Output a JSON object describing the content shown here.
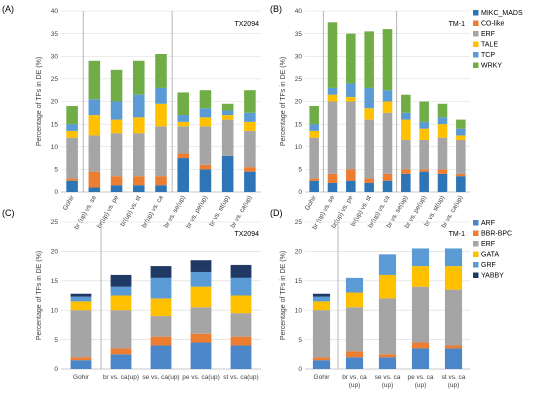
{
  "colors": {
    "MIKC_MADS": "#2e75b6",
    "CO-like": "#ed7d31",
    "ERF": "#a5a5a5",
    "TALE": "#ffc000",
    "TCP": "#5b9bd5",
    "WRKY": "#70ad47",
    "ARF": "#4a86c8",
    "BBR-BPC": "#ed7d31",
    "GATA": "#ffc000",
    "GRF": "#5b9bd5",
    "YABBY": "#203864",
    "grid": "#d9d9d9",
    "divider": "#a6a6a6"
  },
  "chart_data": [
    {
      "panel": "(A)",
      "type": "bar",
      "stacked": true,
      "title": "TX2094",
      "ylabel": "Percentage of TFs in DE (%)",
      "ylim": [
        0,
        40
      ],
      "yticks": [
        0,
        5,
        10,
        15,
        20,
        25,
        30,
        35,
        40
      ],
      "grid": true,
      "categories": [
        "Gohir",
        "br (up) vs. se",
        "br(up) vs. pe",
        "br(up) vs. st",
        "br(up) vs. ca",
        "br vs. se(up)",
        "br vs. pe(up)",
        "br vs. st(up)",
        "br vs. ca(up)"
      ],
      "series": [
        {
          "name": "MIKC_MADS",
          "values": [
            2.5,
            1.0,
            1.5,
            1.5,
            1.5,
            7.5,
            5.0,
            8.0,
            4.5
          ]
        },
        {
          "name": "CO-like",
          "values": [
            0.5,
            3.5,
            2.0,
            2.0,
            2.0,
            1.0,
            1.0,
            0,
            1.0
          ]
        },
        {
          "name": "ERF",
          "values": [
            9.0,
            8.0,
            9.5,
            9.5,
            11.0,
            6.0,
            8.5,
            8.0,
            8.0
          ]
        },
        {
          "name": "TALE",
          "values": [
            1.5,
            4.5,
            3.0,
            3.5,
            5.0,
            1.0,
            2.0,
            1.0,
            2.0
          ]
        },
        {
          "name": "TCP",
          "values": [
            1.5,
            3.5,
            4.0,
            5.0,
            3.5,
            1.5,
            2.0,
            1.0,
            2.0
          ]
        },
        {
          "name": "WRKY",
          "values": [
            4.0,
            8.5,
            7.0,
            7.5,
            7.5,
            5.0,
            4.0,
            1.5,
            5.0
          ]
        }
      ]
    },
    {
      "panel": "(B)",
      "type": "bar",
      "stacked": true,
      "title": "TM-1",
      "ylabel": "Percentage of TFs in DE (%)",
      "ylim": [
        0,
        40
      ],
      "yticks": [
        0,
        5,
        10,
        15,
        20,
        25,
        30,
        35,
        40
      ],
      "grid": true,
      "legend": [
        "MIKC_MADS",
        "CO-like",
        "ERF",
        "TALE",
        "TCP",
        "WRKY"
      ],
      "legend_position": "right",
      "categories": [
        "Gohir",
        "br (up) vs. se",
        "br(up) vs. pe",
        "br(up) vs. st",
        "br(up) vs. ca",
        "br vs. se(up)",
        "br vs. pe(up)",
        "br vs. st(up)",
        "br vs. ca(up)"
      ],
      "series": [
        {
          "name": "MIKC_MADS",
          "values": [
            2.5,
            2.0,
            2.5,
            2.0,
            2.5,
            4.0,
            4.5,
            4.0,
            3.5
          ]
        },
        {
          "name": "CO-like",
          "values": [
            0.5,
            2.0,
            2.5,
            1.0,
            1.5,
            1.0,
            0.5,
            1.0,
            0.5
          ]
        },
        {
          "name": "ERF",
          "values": [
            9.0,
            16.0,
            15.0,
            13.0,
            13.5,
            6.5,
            6.5,
            7.0,
            7.5
          ]
        },
        {
          "name": "TALE",
          "values": [
            1.5,
            1.5,
            1.0,
            2.5,
            2.5,
            4.5,
            2.5,
            3.0,
            1.0
          ]
        },
        {
          "name": "TCP",
          "values": [
            1.5,
            1.5,
            3.0,
            4.5,
            2.5,
            1.5,
            1.5,
            1.5,
            1.5
          ]
        },
        {
          "name": "WRKY",
          "values": [
            4.0,
            14.5,
            11.0,
            12.5,
            13.5,
            4.0,
            4.5,
            3.0,
            2.0
          ]
        }
      ]
    },
    {
      "panel": "(C)",
      "type": "bar",
      "stacked": true,
      "title": "TX2094",
      "ylabel": "Percentage of TFs in DE (%)",
      "ylim": [
        0,
        25
      ],
      "yticks": [
        0,
        5,
        10,
        15,
        20,
        25
      ],
      "grid": true,
      "categories": [
        "Gohir",
        "br vs. ca(up)",
        "se vs. ca(up)",
        "pe vs. ca(up)",
        "st vs. ca(up)"
      ],
      "series": [
        {
          "name": "ARF",
          "values": [
            1.5,
            2.5,
            4.0,
            4.5,
            4.0
          ]
        },
        {
          "name": "BBR-BPC",
          "values": [
            0.5,
            1.0,
            1.5,
            1.5,
            1.5
          ]
        },
        {
          "name": "ERF",
          "values": [
            8.0,
            6.5,
            3.5,
            4.5,
            4.0
          ]
        },
        {
          "name": "GATA",
          "values": [
            1.5,
            2.5,
            3.0,
            3.5,
            3.0
          ]
        },
        {
          "name": "GRF",
          "values": [
            0.8,
            1.5,
            3.5,
            2.5,
            3.0
          ]
        },
        {
          "name": "YABBY",
          "values": [
            0.5,
            2.0,
            2.0,
            2.0,
            2.2
          ]
        }
      ]
    },
    {
      "panel": "(D)",
      "type": "bar",
      "stacked": true,
      "title": "TM-1",
      "ylabel": "Percentage of TFs in DE (%)",
      "ylim": [
        0,
        25
      ],
      "yticks": [
        0,
        5,
        10,
        15,
        20,
        25
      ],
      "grid": true,
      "legend": [
        "ARF",
        "BBR-BPC",
        "ERF",
        "GATA",
        "GRF",
        "YABBY"
      ],
      "legend_position": "right",
      "categories": [
        "Gohir",
        "br vs. ca\n(up)",
        "se vs. ca\n(up)",
        "pe vs. ca\n(up)",
        "st vs. ca\n(up)"
      ],
      "series": [
        {
          "name": "ARF",
          "values": [
            1.5,
            2.0,
            2.0,
            3.5,
            3.5
          ]
        },
        {
          "name": "BBR-BPC",
          "values": [
            0.5,
            1.0,
            0.5,
            1.0,
            0.5
          ]
        },
        {
          "name": "ERF",
          "values": [
            8.0,
            7.5,
            9.5,
            9.5,
            9.5
          ]
        },
        {
          "name": "GATA",
          "values": [
            1.5,
            2.5,
            4.0,
            3.5,
            4.0
          ]
        },
        {
          "name": "GRF",
          "values": [
            0.8,
            2.5,
            3.5,
            3.0,
            3.0
          ]
        },
        {
          "name": "YABBY",
          "values": [
            0.5,
            0,
            0,
            0,
            0
          ]
        }
      ]
    }
  ]
}
